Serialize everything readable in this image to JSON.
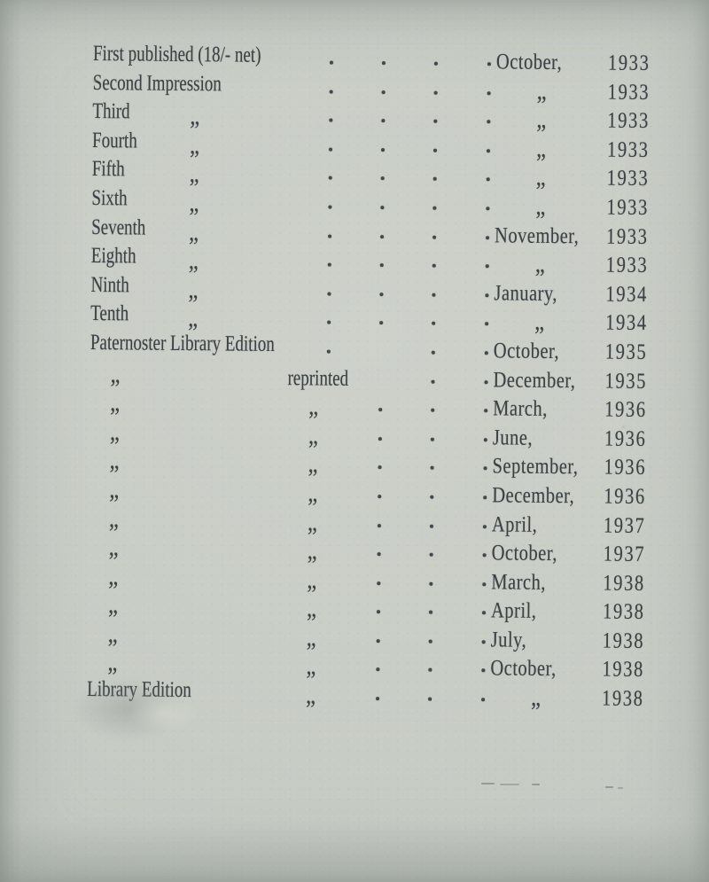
{
  "document_type": "printing-history-page",
  "ink_color": "#3b4145",
  "paper_color": "#c7ccc5",
  "ditto_mark": "„",
  "rows": [
    {
      "s": 1,
      "left": "First published (18/- net)",
      "mid": "",
      "dots": [
        1,
        2,
        3,
        4
      ],
      "month": "October,",
      "year": "1933"
    },
    {
      "s": 1,
      "left": "Second Impression",
      "mid": "",
      "dots": [
        1,
        2,
        3,
        4
      ],
      "month": "„",
      "year": "1933"
    },
    {
      "s": 1,
      "left": "Third",
      "mid": "„",
      "dots": [
        1,
        2,
        3,
        4
      ],
      "month": "„",
      "year": "1933"
    },
    {
      "s": 1,
      "left": "Fourth",
      "mid": "„",
      "dots": [
        1,
        2,
        3,
        4
      ],
      "month": "„",
      "year": "1933"
    },
    {
      "s": 1,
      "left": "Fifth",
      "mid": "„",
      "dots": [
        1,
        2,
        3,
        4
      ],
      "month": "„",
      "year": "1933"
    },
    {
      "s": 1,
      "left": "Sixth",
      "mid": "„",
      "dots": [
        1,
        2,
        3,
        4
      ],
      "month": "„",
      "year": "1933"
    },
    {
      "s": 1,
      "left": "Seventh",
      "mid": "„",
      "dots": [
        1,
        2,
        3,
        4
      ],
      "month": "November,",
      "year": "1933"
    },
    {
      "s": 1,
      "left": "Eighth",
      "mid": "„",
      "dots": [
        1,
        2,
        3,
        4
      ],
      "month": "„",
      "year": "1933"
    },
    {
      "s": 1,
      "left": "Ninth",
      "mid": "„",
      "dots": [
        1,
        2,
        3,
        4
      ],
      "month": "January,",
      "year": "1934"
    },
    {
      "s": 1,
      "left": "Tenth",
      "mid": "„",
      "dots": [
        1,
        2,
        3,
        4
      ],
      "month": "„",
      "year": "1934"
    },
    {
      "s": 2,
      "left": "Paternoster Library Edition",
      "mid": "",
      "dots": [
        1,
        3,
        4
      ],
      "month": "October,",
      "year": "1935"
    },
    {
      "s": 2,
      "left": "„",
      "mid": "reprinted",
      "dots": [
        3,
        4
      ],
      "month": "December,",
      "year": "1935"
    },
    {
      "s": 2,
      "left": "„",
      "mid": "„",
      "dots": [
        2,
        3,
        4
      ],
      "month": "March,",
      "year": "1936"
    },
    {
      "s": 2,
      "left": "„",
      "mid": "„",
      "dots": [
        2,
        3,
        4
      ],
      "month": "June,",
      "year": "1936"
    },
    {
      "s": 2,
      "left": "„",
      "mid": "„",
      "dots": [
        2,
        3,
        4
      ],
      "month": "September,",
      "year": "1936"
    },
    {
      "s": 2,
      "left": "„",
      "mid": "„",
      "dots": [
        2,
        3,
        4
      ],
      "month": "December,",
      "year": "1936"
    },
    {
      "s": 2,
      "left": "„",
      "mid": "„",
      "dots": [
        2,
        3,
        4
      ],
      "month": "April,",
      "year": "1937"
    },
    {
      "s": 2,
      "left": "„",
      "mid": "„",
      "dots": [
        2,
        3,
        4
      ],
      "month": "October,",
      "year": "1937"
    },
    {
      "s": 2,
      "left": "„",
      "mid": "„",
      "dots": [
        2,
        3,
        4
      ],
      "month": "March,",
      "year": "1938"
    },
    {
      "s": 2,
      "left": "„",
      "mid": "„",
      "dots": [
        2,
        3,
        4
      ],
      "month": "April,",
      "year": "1938"
    },
    {
      "s": 2,
      "left": "„",
      "mid": "„",
      "dots": [
        2,
        3,
        4
      ],
      "month": "July,",
      "year": "1938"
    },
    {
      "s": 2,
      "left": "„",
      "mid": "„",
      "dots": [
        2,
        3,
        4
      ],
      "month": "October,",
      "year": "1938"
    },
    {
      "s": 2,
      "left": "Library Edition",
      "mid": "„",
      "dots": [
        2,
        3,
        4
      ],
      "month": "„",
      "year": "1938"
    }
  ]
}
